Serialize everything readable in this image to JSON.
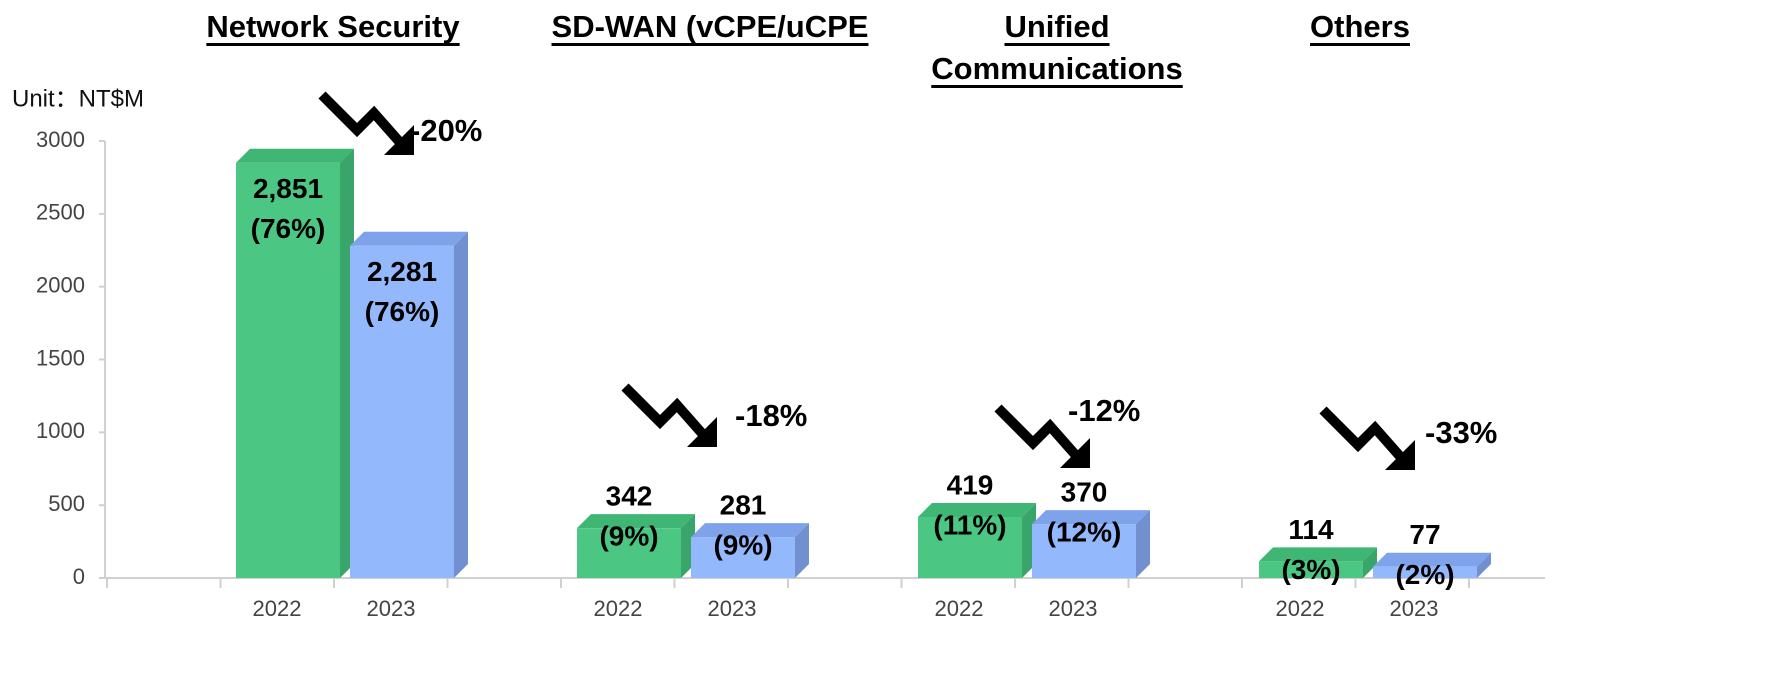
{
  "chart_data": {
    "type": "bar",
    "unit_label": "Unit：NT$M",
    "ylim": [
      0,
      3000
    ],
    "yticks": [
      0,
      500,
      1000,
      1500,
      2000,
      2500,
      3000
    ],
    "colors": [
      "#4cc783",
      "#94b8fc"
    ],
    "groups": [
      {
        "title": "Network Security",
        "categories": [
          "2022",
          "2023"
        ],
        "values": [
          2851,
          2281
        ],
        "value_labels": [
          "2,851",
          "2,281"
        ],
        "share_labels": [
          "(76%)",
          "(76%)"
        ],
        "change": "-20%"
      },
      {
        "title": "SD-WAN (vCPE/uCPE",
        "categories": [
          "2022",
          "2023"
        ],
        "values": [
          342,
          281
        ],
        "share_labels": [
          "(9%)",
          "(9%)"
        ],
        "change": "-18%"
      },
      {
        "title": "Unified Communications",
        "categories": [
          "2022",
          "2023"
        ],
        "values": [
          419,
          370
        ],
        "share_labels": [
          "(11%)",
          "(12%)"
        ],
        "change": "-12%"
      },
      {
        "title": "Others",
        "categories": [
          "2022",
          "2023"
        ],
        "values": [
          114,
          77
        ],
        "share_labels": [
          "(3%)",
          "(2%)"
        ],
        "change": "-33%"
      }
    ]
  }
}
